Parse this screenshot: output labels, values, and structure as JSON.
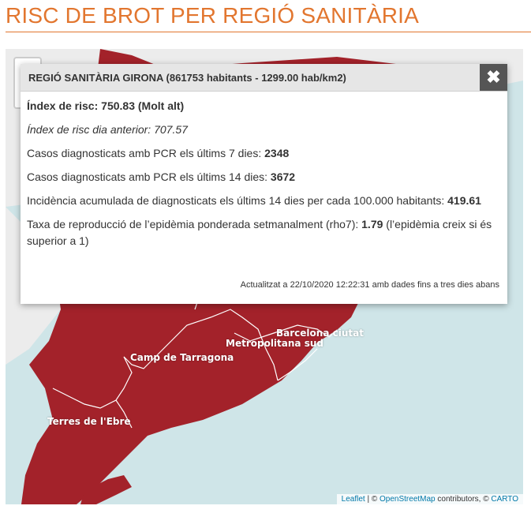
{
  "page": {
    "title": "RISC DE BROT PER REGIÓ SANITÀRIA"
  },
  "map": {
    "labels": {
      "camp_tarragona": "Camp de Tarragona",
      "metropolitana_sud": "Metropolitana sud",
      "barcelona_ciutat": "Barcelona ciutat",
      "terres_ebre": "Terres de l'Ebre"
    },
    "attribution": {
      "leaflet": "Leaflet",
      "sep1": " | © ",
      "osm": "OpenStreetMap",
      "sep2": " contributors, © ",
      "carto": "CARTO"
    },
    "colors": {
      "region_fill": "#a3222a",
      "sea": "#cfe5e8",
      "land": "#ececec",
      "border": "#ffffff"
    }
  },
  "popup": {
    "header": "REGIÓ SANITÀRIA GIRONA (861753 habitants - 1299.00 hab/km2)",
    "close_icon": "✖",
    "risk_index_label": "Índex de risc:",
    "risk_index_value": "750.83",
    "risk_index_level": "(Molt alt)",
    "prev_day_label": "Índex de risc dia anterior:",
    "prev_day_value": "707.57",
    "pcr7_label": "Casos diagnosticats amb PCR els últims 7 dies:",
    "pcr7_value": "2348",
    "pcr14_label": "Casos diagnosticats amb PCR els últims 14 dies:",
    "pcr14_value": "3672",
    "incidence_label": "Incidència acumulada de diagnosticats els últims 14 dies per cada 100.000 habitants:",
    "incidence_value": "419.61",
    "rho7_label": "Taxa de reproducció de l’epidèmia ponderada setmanalment (rho7):",
    "rho7_value": "1.79",
    "rho7_note": "(l’epidèmia creix si és superior a 1)",
    "updated": "Actualitzat a 22/10/2020 12:22:31 amb dades fins a tres dies abans"
  }
}
